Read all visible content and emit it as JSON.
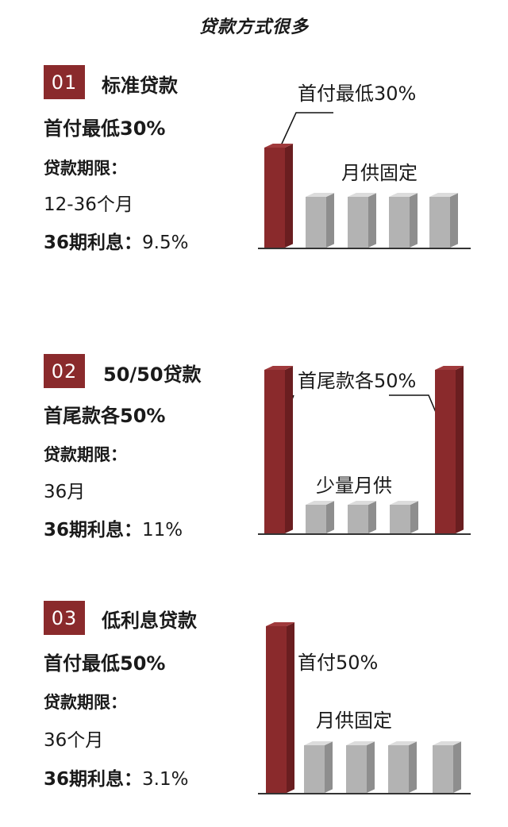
{
  "heading": "贷款方式很多",
  "colors": {
    "accent": "#8a2a2c",
    "bar_gray": "#b3b3b3"
  },
  "sections": [
    {
      "number": "01",
      "title": "标准贷款",
      "lines": [
        {
          "text": "首付最低30%",
          "bold": true
        },
        {
          "text": "贷款期限：",
          "bold": true
        },
        {
          "text": "12-36个月",
          "bold": false
        }
      ],
      "rate_label": "36期利息：",
      "rate_value": "9.5%",
      "chart_labels": [
        "首付最低30%",
        "月供固定"
      ]
    },
    {
      "number": "02",
      "title": "50/50贷款",
      "lines": [
        {
          "text": "首尾款各50%",
          "bold": true
        },
        {
          "text": "贷款期限：",
          "bold": true
        },
        {
          "text": "36月",
          "bold": false
        }
      ],
      "rate_label": "36期利息：",
      "rate_value": "11%",
      "chart_labels": [
        "首尾款各50%",
        "少量月供"
      ]
    },
    {
      "number": "03",
      "title": "低利息贷款",
      "lines": [
        {
          "text": "首付最低50%",
          "bold": true
        },
        {
          "text": "贷款期限：",
          "bold": true
        },
        {
          "text": "36个月",
          "bold": false
        }
      ],
      "rate_label": "36期利息：",
      "rate_value": "3.1%",
      "chart_labels": [
        "首付50%",
        "月供固定"
      ]
    }
  ]
}
